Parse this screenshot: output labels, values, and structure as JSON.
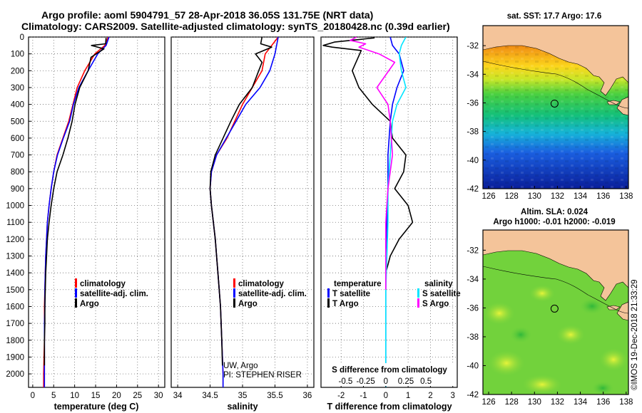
{
  "title_line1": "Argo profile: aoml 5904791_57 28-Apr-2018 36.05S 131.75E (NRT data)",
  "title_line2": "Climatology: CARS2009. Satellite-adjusted climatology: synTS_20180428.nc (0.39d earlier)",
  "footer_credit": "©IMOS 19-Dec-2018 21:33:29",
  "colors": {
    "climatology": "#ff0000",
    "satellite": "#0000ff",
    "argo": "#000000",
    "salinity_satellite": "#00e5ff",
    "salinity_argo": "#ff00ff",
    "land": "#f4c49a"
  },
  "chart_data": [
    {
      "type": "line",
      "id": "temperature",
      "xlabel": "temperature (deg C)",
      "ylabel": "",
      "xlim": [
        -1,
        31.5
      ],
      "ylim": [
        2080,
        0
      ],
      "xticks": [
        0,
        5,
        10,
        15,
        20,
        25,
        30
      ],
      "yticks": [
        0,
        100,
        200,
        300,
        400,
        500,
        600,
        700,
        800,
        900,
        1000,
        1100,
        1200,
        1300,
        1400,
        1500,
        1600,
        1700,
        1800,
        1900,
        2000
      ],
      "grid": true,
      "legend_position": "bottom-right",
      "series": [
        {
          "name": "climatology",
          "color": "#ff0000",
          "x": [
            18.0,
            17.2,
            14.8,
            12.4,
            10.6,
            9.6,
            8.6,
            7.2,
            5.8,
            5.0,
            4.4,
            3.9,
            3.5,
            3.3,
            3.1,
            3.0,
            2.9,
            2.8,
            2.8,
            2.8,
            2.7,
            2.6,
            2.6
          ],
          "y": [
            0,
            50,
            100,
            200,
            300,
            400,
            500,
            600,
            700,
            800,
            900,
            1000,
            1100,
            1200,
            1300,
            1400,
            1500,
            1600,
            1700,
            1800,
            1900,
            2000,
            2080
          ]
        },
        {
          "name": "satellite-adj. clim.",
          "color": "#0000ff",
          "x": [
            18.2,
            17.5,
            15.5,
            13.2,
            11.0,
            9.7,
            8.8,
            7.3,
            5.9,
            5.0,
            4.4,
            3.9,
            3.5,
            3.3,
            3.1,
            3.0,
            2.9,
            2.9,
            2.8,
            2.8,
            2.8,
            2.8,
            2.8
          ],
          "y": [
            0,
            50,
            100,
            200,
            300,
            400,
            500,
            600,
            700,
            800,
            900,
            1000,
            1100,
            1200,
            1300,
            1400,
            1500,
            1600,
            1700,
            1800,
            1900,
            2000,
            2080
          ]
        },
        {
          "name": "Argo",
          "color": "#000000",
          "x": [
            17.5,
            17.4,
            14.0,
            17.0,
            13.9,
            13.2,
            11.2,
            10.1,
            9.4,
            8.4,
            7.2,
            5.8,
            5.0,
            4.4,
            3.9,
            3.5,
            3.3,
            3.1,
            3.0,
            2.9,
            2.9,
            2.8,
            2.8
          ],
          "y": [
            5,
            40,
            50,
            70,
            120,
            200,
            300,
            400,
            500,
            600,
            700,
            800,
            900,
            1000,
            1100,
            1200,
            1300,
            1400,
            1500,
            1600,
            1700,
            1800,
            1950
          ]
        }
      ]
    },
    {
      "type": "line",
      "id": "salinity",
      "xlabel": "salinity",
      "ylabel": "",
      "xlim": [
        33.9,
        36.1
      ],
      "ylim": [
        2080,
        0
      ],
      "xticks": [
        34,
        34.5,
        35,
        35.5,
        36
      ],
      "grid": true,
      "legend_position": "bottom-right",
      "annotations": [
        "UW, Argo",
        "PI: STEPHEN RISER"
      ],
      "series": [
        {
          "name": "climatology",
          "color": "#ff0000",
          "x": [
            35.55,
            35.35,
            35.3,
            35.15,
            35.0,
            34.88,
            34.76,
            34.6,
            34.52,
            34.5,
            34.52,
            34.55,
            34.58,
            34.6,
            34.62,
            34.64,
            34.66,
            34.67,
            34.68,
            34.69,
            34.7,
            34.7
          ],
          "y": [
            0,
            100,
            200,
            300,
            400,
            500,
            600,
            700,
            800,
            900,
            1000,
            1100,
            1200,
            1300,
            1400,
            1500,
            1600,
            1700,
            1800,
            1900,
            2000,
            2080
          ]
        },
        {
          "name": "satellite-adj. clim.",
          "color": "#0000ff",
          "x": [
            35.55,
            35.5,
            35.42,
            35.27,
            35.05,
            34.9,
            34.75,
            34.6,
            34.52,
            34.5,
            34.52,
            34.55,
            34.58,
            34.6,
            34.62,
            34.64,
            34.66,
            34.67,
            34.68,
            34.69,
            34.7,
            34.7
          ],
          "y": [
            0,
            100,
            200,
            300,
            400,
            500,
            600,
            700,
            800,
            900,
            1000,
            1100,
            1200,
            1300,
            1400,
            1500,
            1600,
            1700,
            1800,
            1900,
            2000,
            2080
          ]
        },
        {
          "name": "Argo",
          "color": "#000000",
          "x": [
            35.3,
            35.28,
            35.45,
            35.2,
            35.3,
            35.25,
            35.15,
            34.95,
            34.82,
            34.7,
            34.58,
            34.51,
            34.5,
            34.52,
            34.55,
            34.58,
            34.6,
            34.62,
            34.64,
            34.66,
            34.67,
            34.68,
            34.69
          ],
          "y": [
            0,
            40,
            60,
            100,
            150,
            200,
            300,
            400,
            500,
            600,
            700,
            800,
            900,
            1000,
            1100,
            1200,
            1300,
            1400,
            1500,
            1600,
            1700,
            1800,
            1950
          ]
        }
      ]
    },
    {
      "type": "line",
      "id": "difference",
      "xlabel": "T difference from climatology",
      "xlabel_top": "S difference from climatology",
      "xlim": [
        -2.9,
        3.2
      ],
      "ylim": [
        2080,
        0
      ],
      "xticks": [
        -2,
        -1,
        0,
        1,
        2,
        3
      ],
      "top_axis_ticks": [
        "-0.5",
        "-0.25",
        "0",
        "0.25",
        "0.5"
      ],
      "top_axis_ticks_T": [
        -1.8,
        -0.9,
        0,
        0.9,
        1.8
      ],
      "grid": true,
      "legend_left_title": "temperature",
      "legend_right_title": "salinity",
      "series": [
        {
          "name": "T satellite",
          "color": "#0000ff",
          "x": [
            0.2,
            0.3,
            0.6,
            0.8,
            0.5,
            0.3,
            0.2,
            0.1,
            0.1,
            0.05,
            0.0,
            0.0,
            0.0,
            0.0,
            0.0
          ],
          "y": [
            0,
            50,
            100,
            200,
            300,
            400,
            500,
            700,
            900,
            1100,
            1300,
            1500,
            1700,
            1900,
            2080
          ]
        },
        {
          "name": "T Argo",
          "color": "#000000",
          "x": [
            -0.5,
            -2.3,
            -2.8,
            -2.4,
            -1.1,
            -1.5,
            -1.2,
            -0.6,
            0.2,
            0.3,
            0.9,
            0.8,
            0.4,
            1.0,
            1.2,
            0.6,
            0.2,
            0.0
          ],
          "y": [
            5,
            30,
            50,
            60,
            80,
            200,
            300,
            400,
            500,
            600,
            700,
            800,
            900,
            1000,
            1100,
            1200,
            1300,
            1400
          ]
        },
        {
          "name": "S satellite",
          "color": "#00e5ff",
          "x": [
            0.9,
            0.7,
            0.6,
            0.7,
            0.9,
            0.5,
            0.3,
            0.2,
            0.1,
            0.1,
            0.05,
            0.0,
            0.0,
            0.0,
            0.0
          ],
          "y": [
            0,
            50,
            100,
            200,
            300,
            400,
            500,
            700,
            900,
            1100,
            1300,
            1500,
            1700,
            1900,
            2080
          ]
        },
        {
          "name": "S Argo",
          "color": "#ff00ff",
          "x": [
            -1.3,
            -1.6,
            -0.9,
            -1.2,
            -0.3,
            0.4,
            -0.4,
            0.1,
            0.2,
            0.3,
            0.1,
            0.0,
            0.0,
            0.0,
            0.0,
            0.0
          ],
          "y": [
            0,
            20,
            40,
            60,
            100,
            150,
            300,
            400,
            500,
            700,
            900,
            1100,
            1200,
            1300,
            1400,
            1500
          ]
        }
      ]
    },
    {
      "type": "heatmap",
      "id": "sst_map",
      "title": "sat. SST: 17.7 Argo: 17.6",
      "xlim": [
        125.5,
        138.2
      ],
      "ylim": [
        -42,
        -30.6
      ],
      "xticks": [
        126,
        128,
        130,
        132,
        134,
        136,
        138
      ],
      "yticks": [
        -32,
        -34,
        -36,
        -38,
        -40,
        -42
      ],
      "marker": {
        "lon": 131.75,
        "lat": -36.05
      }
    },
    {
      "type": "heatmap",
      "id": "sla_map",
      "title": "Altim. SLA: 0.024",
      "subtitle": "Argo h1000: -0.01 h2000: -0.019",
      "xlim": [
        125.5,
        138.2
      ],
      "ylim": [
        -42,
        -30.6
      ],
      "xticks": [
        126,
        128,
        130,
        132,
        134,
        136,
        138
      ],
      "yticks": [
        -32,
        -34,
        -36,
        -38,
        -40,
        -42
      ],
      "marker": {
        "lon": 131.75,
        "lat": -36.05
      }
    }
  ]
}
